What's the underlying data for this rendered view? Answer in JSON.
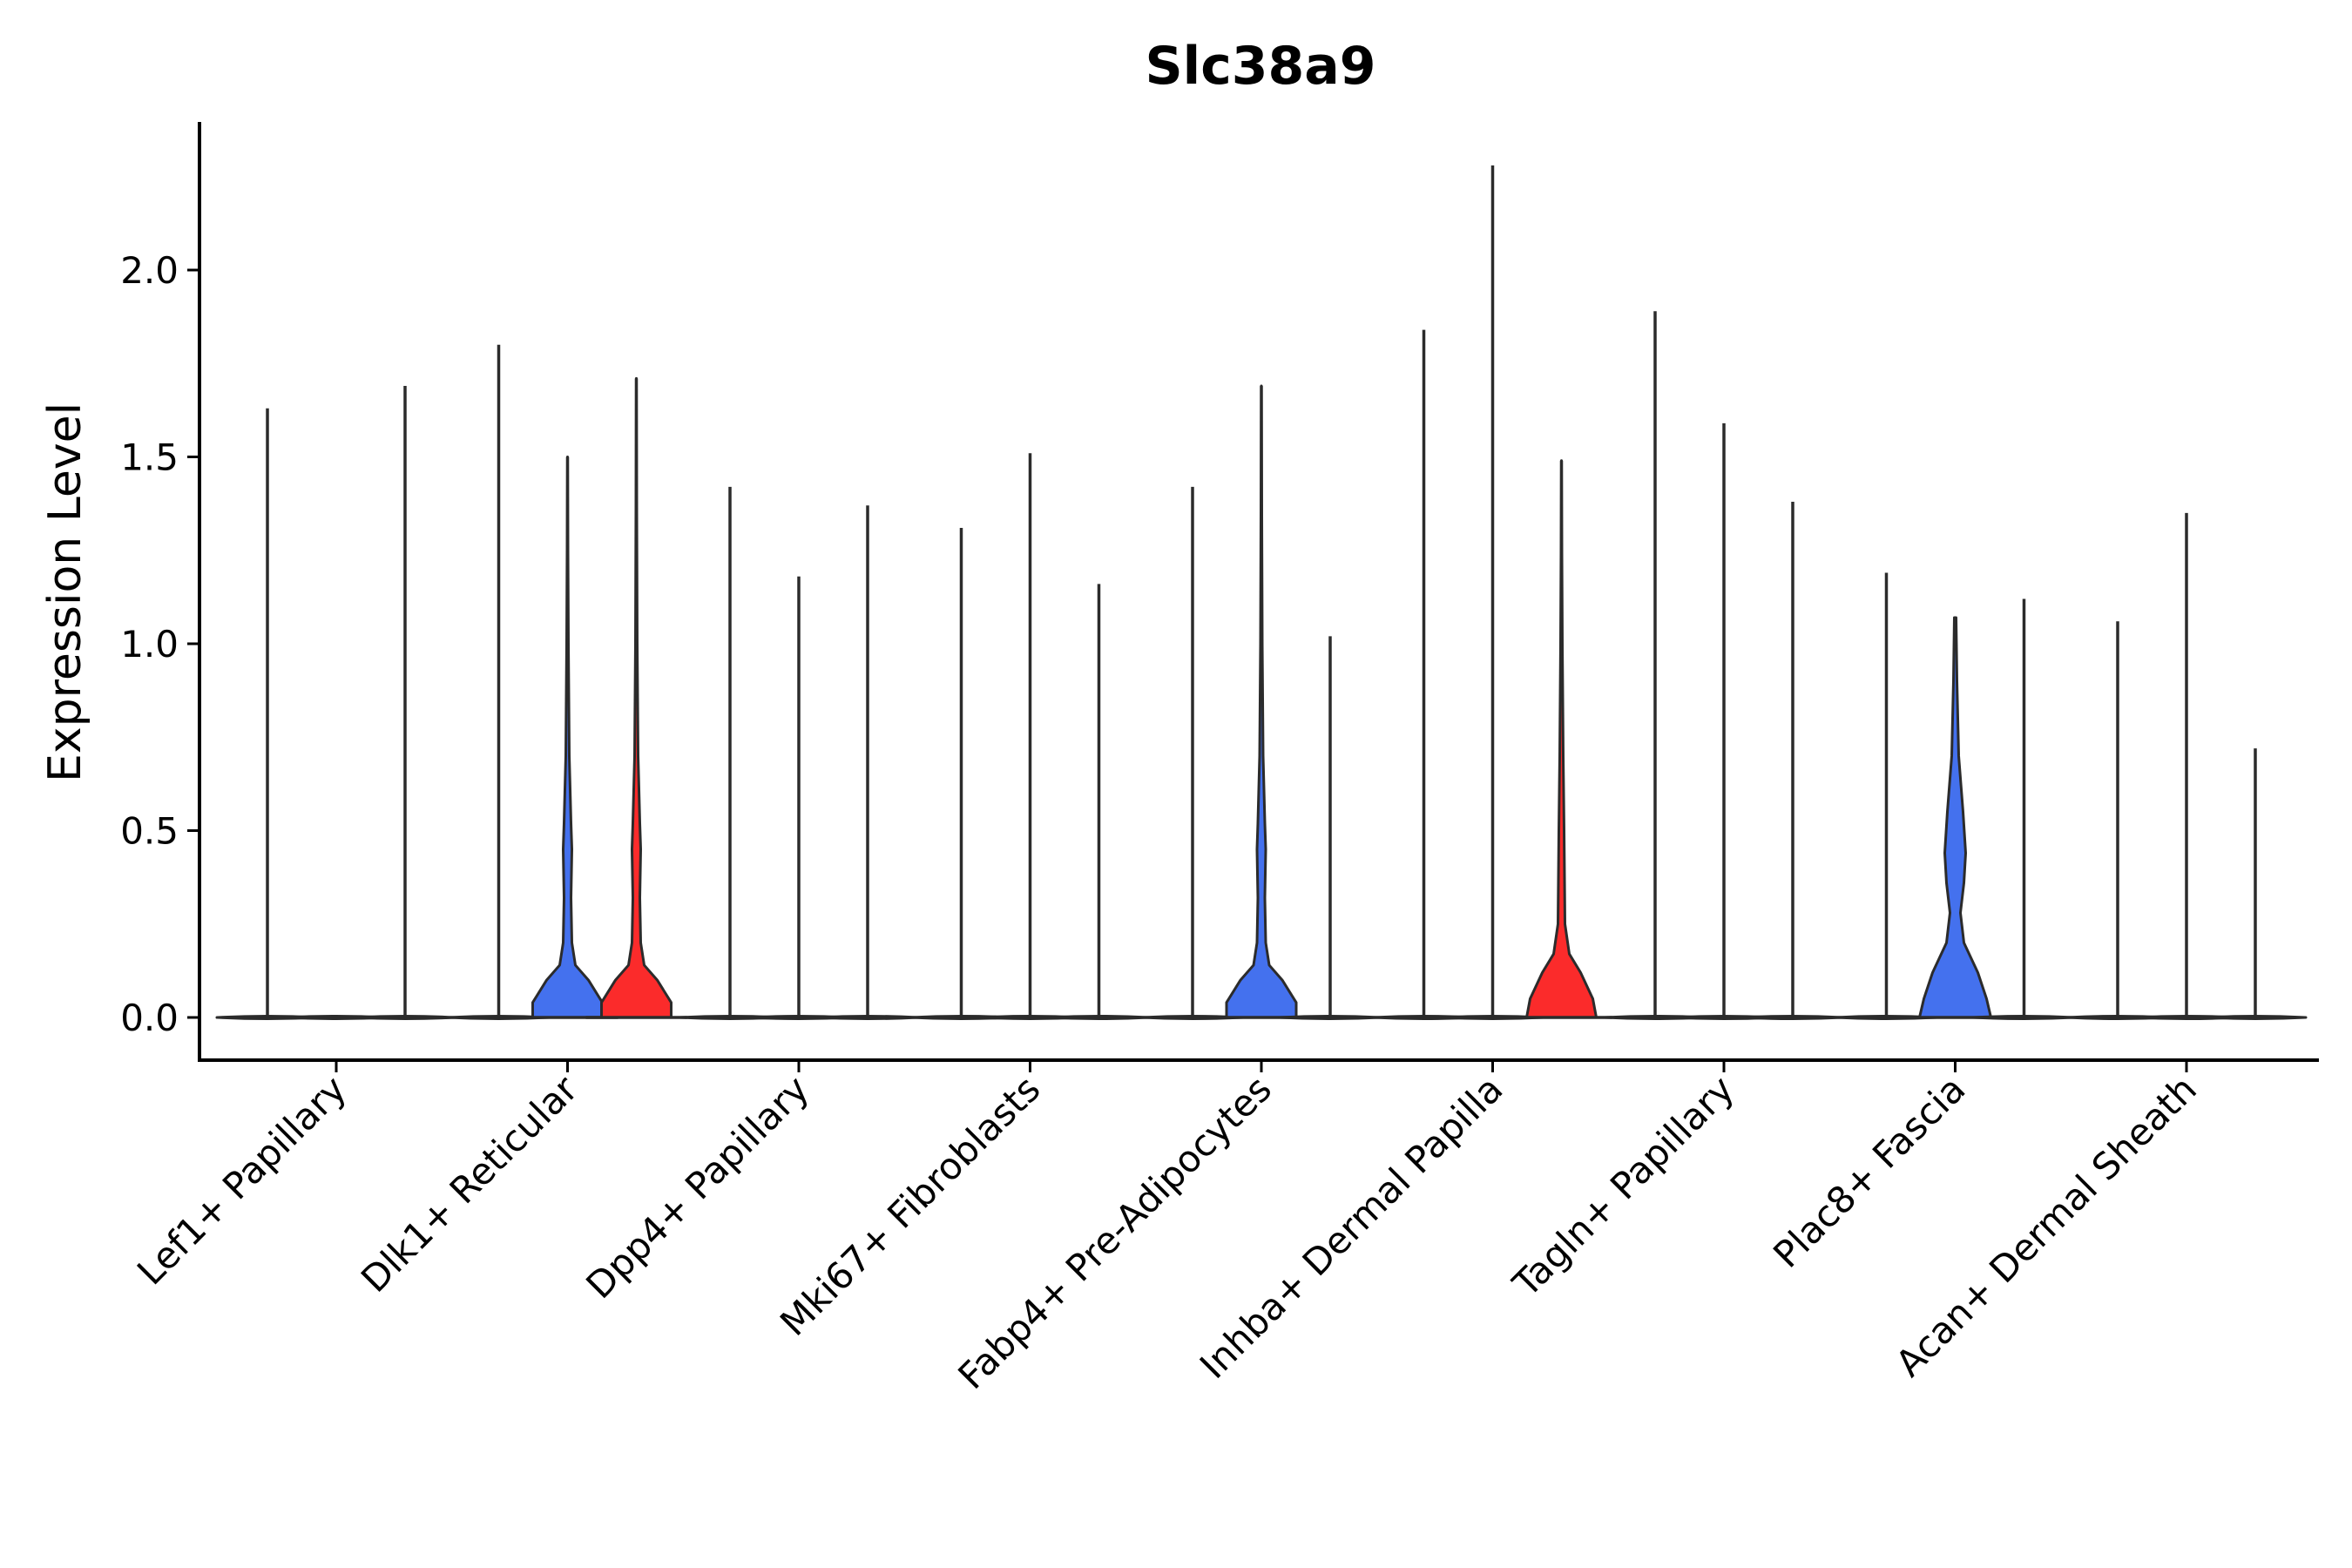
{
  "chart_data": {
    "type": "violin",
    "title": "Slc38a9",
    "ylabel": "Expression Level",
    "xlabel": "",
    "ylim": [
      -0.11,
      2.4
    ],
    "yticks": [
      0.0,
      0.5,
      1.0,
      1.5,
      2.0
    ],
    "ytick_labels": [
      "0.0",
      "0.5",
      "1.0",
      "1.5",
      "2.0"
    ],
    "legend": "none",
    "grid": false,
    "colors": {
      "blue": "#4471ee",
      "red": "#fb2b2b",
      "line": "#2b2b2b"
    },
    "categories": [
      "Lef1+ Papillary",
      "Dlk1+ Reticular",
      "Dpp4+ Papillary",
      "Mki67+ Fibroblasts",
      "Fabp4+ Pre-Adipocytes",
      "Inhba+ Dermal Papilla",
      "Tagln+ Papillary",
      "Plac8+ Fascia",
      "Acan+ Dermal Sheath"
    ],
    "groups": [
      {
        "category": "Lef1+ Papillary",
        "violins": [
          {
            "max": 1.63,
            "fill": "none"
          },
          {
            "max": 0.0,
            "fill": "none"
          },
          {
            "max": 1.69,
            "fill": "none"
          }
        ]
      },
      {
        "category": "Dlk1+ Reticular",
        "violins": [
          {
            "max": 1.8,
            "fill": "none"
          },
          {
            "max": 1.5,
            "fill": "blue",
            "shape": "bimodal"
          },
          {
            "max": 1.71,
            "fill": "red",
            "shape": "bimodal"
          }
        ]
      },
      {
        "category": "Dpp4+ Papillary",
        "violins": [
          {
            "max": 1.42,
            "fill": "none"
          },
          {
            "max": 1.18,
            "fill": "none"
          },
          {
            "max": 1.37,
            "fill": "none"
          }
        ]
      },
      {
        "category": "Mki67+ Fibroblasts",
        "violins": [
          {
            "max": 1.31,
            "fill": "none"
          },
          {
            "max": 1.51,
            "fill": "none"
          },
          {
            "max": 1.16,
            "fill": "none"
          }
        ]
      },
      {
        "category": "Fabp4+ Pre-Adipocytes",
        "violins": [
          {
            "max": 1.42,
            "fill": "none"
          },
          {
            "max": 1.69,
            "fill": "blue",
            "shape": "bimodal"
          },
          {
            "max": 1.02,
            "fill": "none"
          }
        ]
      },
      {
        "category": "Inhba+ Dermal Papilla",
        "violins": [
          {
            "max": 1.84,
            "fill": "none"
          },
          {
            "max": 2.28,
            "fill": "none"
          },
          {
            "max": 1.49,
            "fill": "red",
            "shape": "bimodal-wide"
          }
        ]
      },
      {
        "category": "Tagln+ Papillary",
        "violins": [
          {
            "max": 1.89,
            "fill": "none"
          },
          {
            "max": 1.59,
            "fill": "none"
          },
          {
            "max": 1.38,
            "fill": "none"
          }
        ]
      },
      {
        "category": "Plac8+ Fascia",
        "violins": [
          {
            "max": 1.19,
            "fill": "none"
          },
          {
            "max": 1.07,
            "fill": "blue",
            "shape": "bimodal-big"
          },
          {
            "max": 1.12,
            "fill": "none"
          }
        ]
      },
      {
        "category": "Acan+ Dermal Sheath",
        "violins": [
          {
            "max": 1.06,
            "fill": "none"
          },
          {
            "max": 1.35,
            "fill": "none"
          },
          {
            "max": 0.72,
            "fill": "none"
          }
        ]
      }
    ]
  }
}
